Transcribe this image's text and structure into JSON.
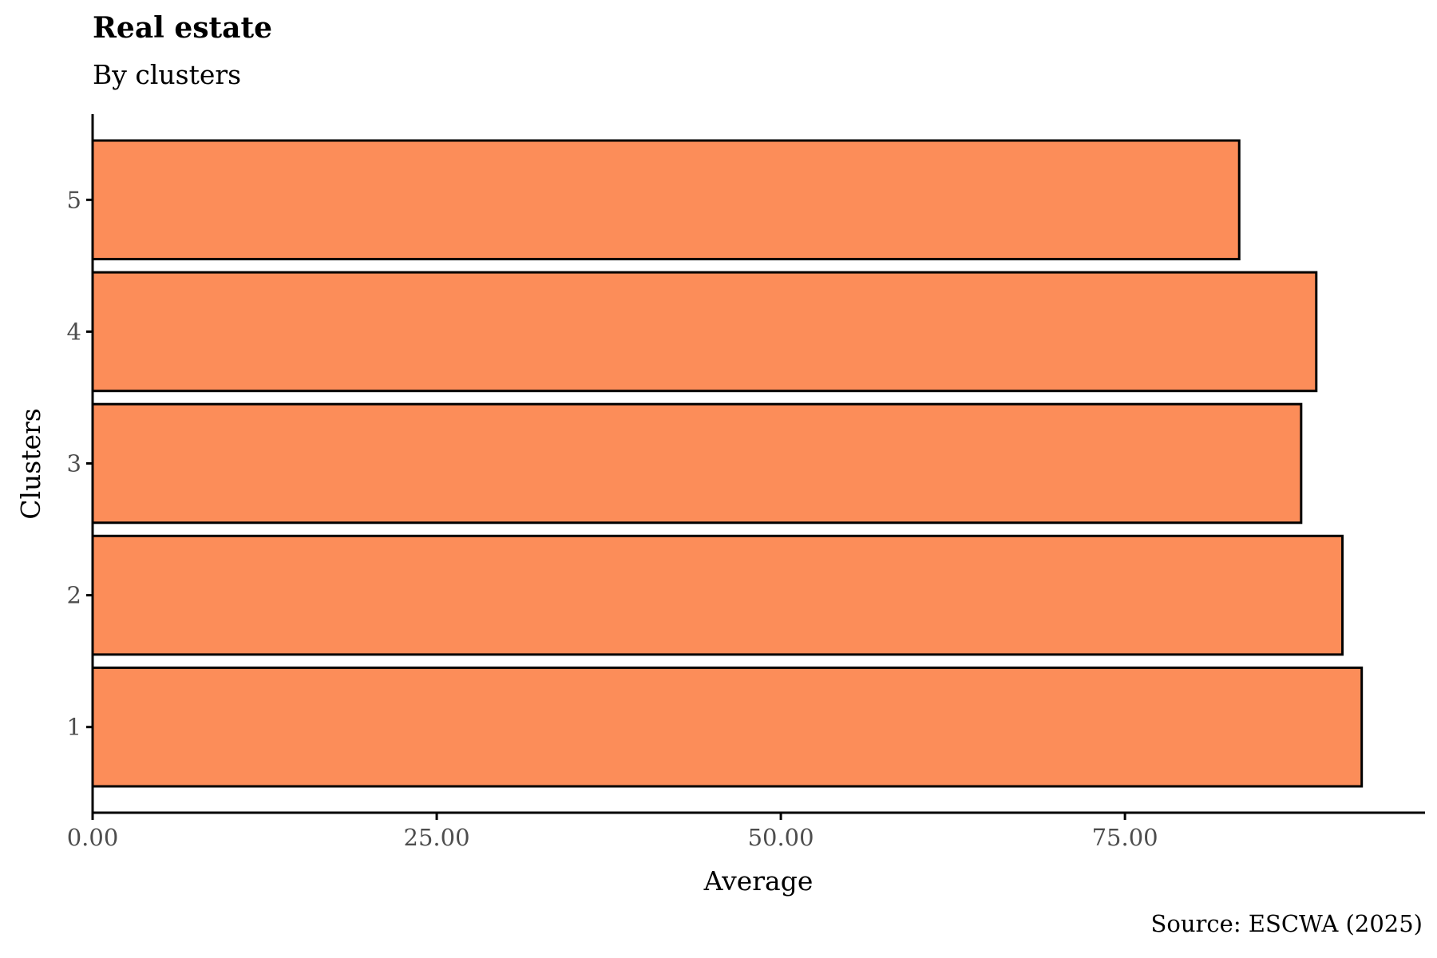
{
  "chart_data": {
    "type": "bar",
    "orientation": "horizontal",
    "title": "Real estate",
    "subtitle": "By clusters",
    "xlabel": "Average",
    "ylabel": "Clusters",
    "caption": "Source: ESCWA (2025)",
    "categories": [
      "1",
      "2",
      "3",
      "4",
      "5"
    ],
    "values": [
      92.2,
      90.8,
      87.8,
      88.9,
      83.3
    ],
    "x_ticks": [
      "0.00",
      "25.00",
      "50.00",
      "75.00"
    ],
    "x_tick_values": [
      0,
      25,
      50,
      75
    ],
    "xlim": [
      0,
      96.8
    ],
    "grid": false,
    "legend": "none",
    "bar_color": "#FC8D59",
    "bar_outline": "#000000"
  }
}
